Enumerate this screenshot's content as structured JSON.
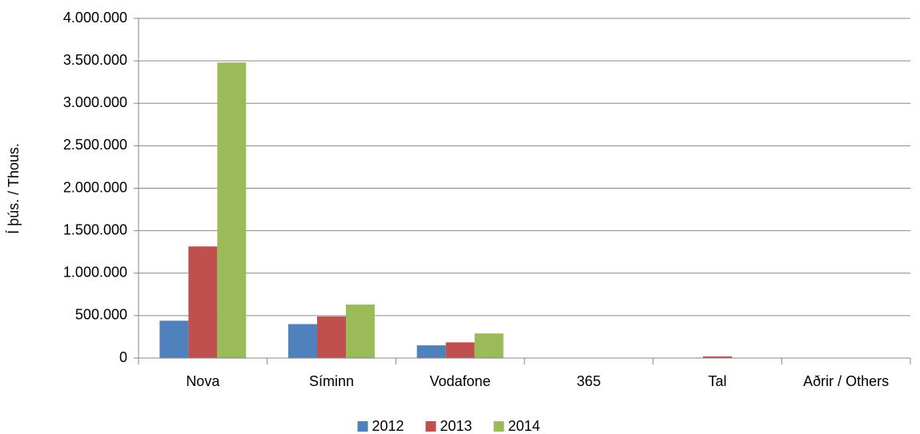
{
  "chart_data": {
    "type": "bar",
    "y_label": "Í þús. / Thous.",
    "categories": [
      "Nova",
      "Síminn",
      "Vodafone",
      "365",
      "Tal",
      "Aðrir / Others"
    ],
    "series": [
      {
        "name": "2012",
        "color": "#4f81bd",
        "values": [
          440000,
          400000,
          150000,
          0,
          0,
          0
        ]
      },
      {
        "name": "2013",
        "color": "#c0504d",
        "values": [
          1315000,
          490000,
          185000,
          0,
          20000,
          0
        ]
      },
      {
        "name": "2014",
        "color": "#9bbb59",
        "values": [
          3480000,
          630000,
          290000,
          0,
          0,
          0
        ]
      }
    ],
    "ylim": [
      0,
      4000000
    ],
    "yticks": [
      0,
      {
        "value": 500000,
        "label": "500.000"
      },
      {
        "value": 1000000,
        "label": "1.000.000"
      },
      {
        "value": 1500000,
        "label": "1.500.000"
      },
      {
        "value": 2000000,
        "label": "2.000.000"
      },
      {
        "value": 2500000,
        "label": "2.500.000"
      },
      {
        "value": 3000000,
        "label": "3.000.000"
      },
      {
        "value": 3500000,
        "label": "3.500.000"
      },
      {
        "value": 4000000,
        "label": "4.000.000"
      }
    ],
    "grid": true,
    "legend": "bottom"
  }
}
